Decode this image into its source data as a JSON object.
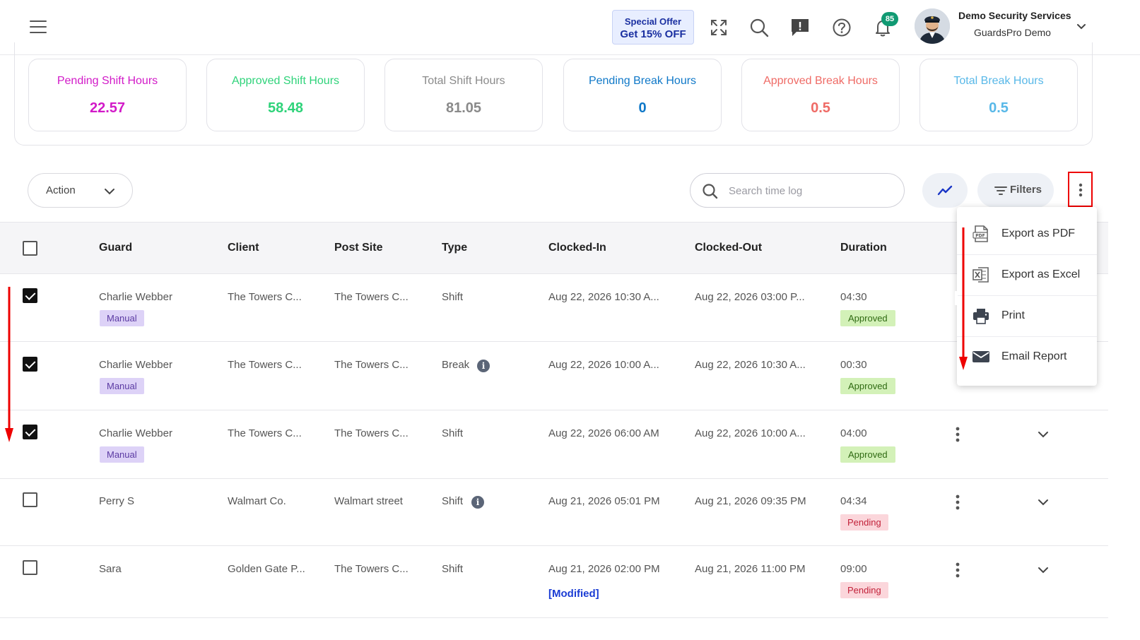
{
  "header": {
    "offer_line1": "Special Offer",
    "offer_line2": "Get 15% OFF",
    "notification_count": "85",
    "company_name": "Demo Security Services",
    "account_name": "GuardsPro Demo"
  },
  "stats": [
    {
      "label": "Pending Shift Hours",
      "value": "22.57",
      "color": "#d21ac8"
    },
    {
      "label": "Approved Shift Hours",
      "value": "58.48",
      "color": "#2fd37a"
    },
    {
      "label": "Total Shift Hours",
      "value": "81.05",
      "color": "#8a8a8a"
    },
    {
      "label": "Pending Break Hours",
      "value": "0",
      "color": "#0f78c8"
    },
    {
      "label": "Approved Break Hours",
      "value": "0.5",
      "color": "#ef6b66"
    },
    {
      "label": "Total Break Hours",
      "value": "0.5",
      "color": "#58b8e8"
    }
  ],
  "toolbar": {
    "action_label": "Action",
    "search_placeholder": "Search time log",
    "filters_label": "Filters"
  },
  "table": {
    "columns": [
      "Guard",
      "Client",
      "Post Site",
      "Type",
      "Clocked-In",
      "Clocked-Out",
      "Duration"
    ],
    "rows": [
      {
        "checked": true,
        "guard": "Charlie Webber",
        "tag": "Manual",
        "client": "The Towers C...",
        "post_site": "The Towers C...",
        "type": "Shift",
        "type_info": false,
        "clocked_in": "Aug 22, 2026 10:30 A...",
        "clocked_out": "Aug 22, 2026 03:00 P...",
        "duration": "04:30",
        "status": "Approved"
      },
      {
        "checked": true,
        "guard": "Charlie Webber",
        "tag": "Manual",
        "client": "The Towers C...",
        "post_site": "The Towers C...",
        "type": "Break",
        "type_info": true,
        "clocked_in": "Aug 22, 2026 10:00 A...",
        "clocked_out": "Aug 22, 2026 10:30 A...",
        "duration": "00:30",
        "status": "Approved"
      },
      {
        "checked": true,
        "guard": "Charlie Webber",
        "tag": "Manual",
        "client": "The Towers C...",
        "post_site": "The Towers C...",
        "type": "Shift",
        "type_info": false,
        "clocked_in": "Aug 22, 2026 06:00 AM",
        "clocked_out": "Aug 22, 2026 10:00 A...",
        "duration": "04:00",
        "status": "Approved"
      },
      {
        "checked": false,
        "guard": "Perry S",
        "tag": "",
        "client": "Walmart Co.",
        "post_site": "Walmart street",
        "type": "Shift",
        "type_info": true,
        "clocked_in": "Aug 21, 2026 05:01 PM",
        "clocked_out": "Aug 21, 2026 09:35 PM",
        "duration": "04:34",
        "status": "Pending"
      },
      {
        "checked": false,
        "guard": "Sara",
        "tag": "",
        "client": "Golden Gate P...",
        "post_site": "The Towers C...",
        "type": "Shift",
        "type_info": false,
        "clocked_in": "Aug 21, 2026 02:00 PM",
        "clocked_out": "Aug 21, 2026 11:00 PM",
        "duration": "09:00",
        "status": "Pending",
        "note": "[Modified]"
      }
    ]
  },
  "export_menu": {
    "items": [
      {
        "label": "Export as PDF",
        "icon": "pdf-icon"
      },
      {
        "label": "Export as Excel",
        "icon": "excel-icon"
      },
      {
        "label": "Print",
        "icon": "printer-icon"
      },
      {
        "label": "Email Report",
        "icon": "mail-icon"
      }
    ]
  }
}
